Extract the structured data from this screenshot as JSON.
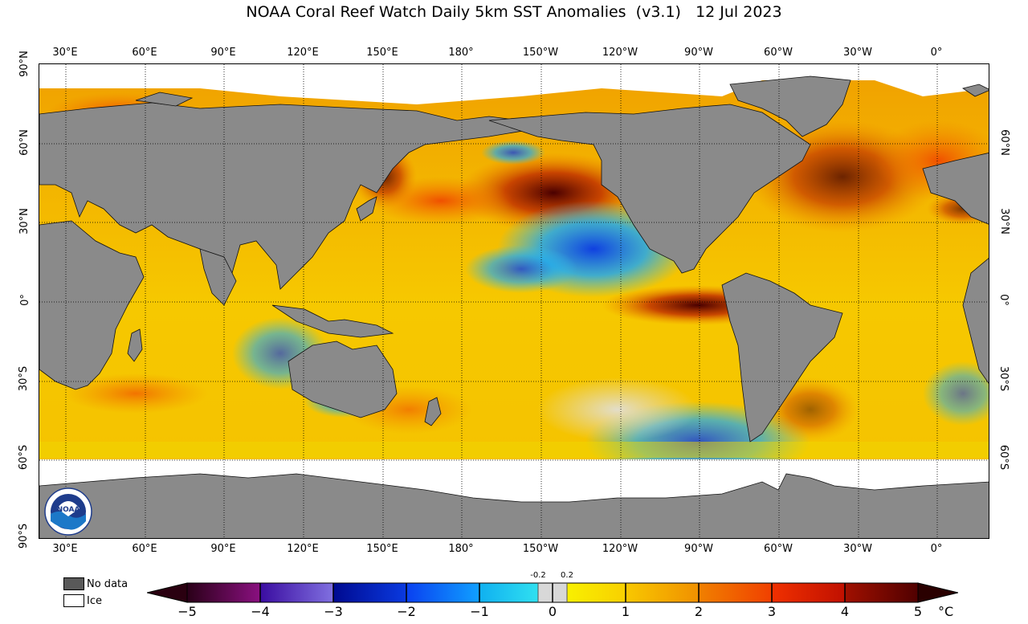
{
  "title": "NOAA Coral Reef Watch Daily 5km SST Anomalies  (v3.1)   12 Jul 2023",
  "lon_ticks": [
    "30°E",
    "60°E",
    "90°E",
    "120°E",
    "150°E",
    "180°",
    "150°W",
    "120°W",
    "90°W",
    "60°W",
    "30°W",
    "0°"
  ],
  "lat_ticks_left": [
    "90°N",
    "60°N",
    "30°N",
    "0°",
    "30°S",
    "60°S",
    "90°S"
  ],
  "lat_ticks_right": [
    "60°N",
    "30°N",
    "0°",
    "30°S",
    "60°S"
  ],
  "legend": {
    "no_data_label": "No data",
    "ice_label": "Ice",
    "no_data_color": "#595959",
    "ice_color": "#ffffff",
    "land_color": "#8a8a8a"
  },
  "colorbar": {
    "ticks": [
      "−5",
      "−4",
      "−3",
      "−2",
      "−1",
      "0",
      "1",
      "2",
      "3",
      "4",
      "5"
    ],
    "small_ticks": [
      "-0.2",
      "0.2"
    ],
    "unit": "°C",
    "colors": {
      "deep_purple": "#2a0020",
      "purple": "#7a0a6e",
      "indigo": "#3a2aa8",
      "navy": "#0a1aa0",
      "blue": "#1a55ff",
      "cyan": "#18c0f0",
      "neutral": "#d8d8d8",
      "yellow": "#f8e800",
      "gold": "#f5b400",
      "orange": "#f07800",
      "red": "#f03000",
      "dark_red": "#9a0a00",
      "maroon": "#3a0000"
    }
  },
  "logo_text": "NOAA"
}
